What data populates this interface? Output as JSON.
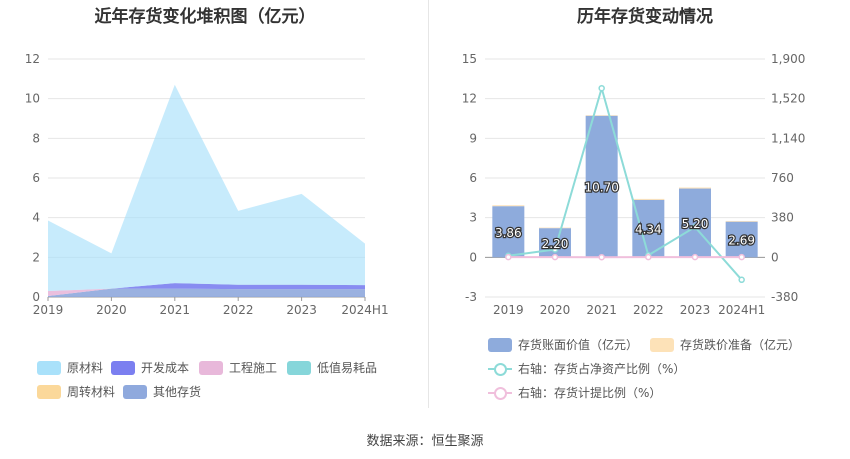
{
  "left_chart": {
    "title": "近年存货变化堆积图（亿元）",
    "legend": [
      {
        "name": "原材料",
        "color": "#a9e1fa"
      },
      {
        "name": "开发成本",
        "color": "#7b7ff0"
      },
      {
        "name": "工程施工",
        "color": "#e8b8da"
      },
      {
        "name": "低值易耗品",
        "color": "#86d6da"
      },
      {
        "name": "周转材料",
        "color": "#fbd89a"
      },
      {
        "name": "其他存货",
        "color": "#8fa9dd"
      }
    ]
  },
  "right_chart": {
    "title": "历年存货变动情况",
    "legend": [
      {
        "name": "存货账面价值（亿元）",
        "color": "#8eabdc",
        "kind": "bar"
      },
      {
        "name": "存货跌价准备（亿元）",
        "color": "#fde2b8",
        "kind": "bar"
      },
      {
        "name": "右轴：存货占净资产比例（%）",
        "color": "#8ddbd8",
        "kind": "line"
      },
      {
        "name": "右轴：存货计提比例（%）",
        "color": "#f0bfdc",
        "kind": "line"
      }
    ]
  },
  "chart_data": [
    {
      "type": "area",
      "stacked": true,
      "title": "近年存货变化堆积图（亿元）",
      "categories": [
        "2019",
        "2020",
        "2021",
        "2022",
        "2023",
        "2024H1"
      ],
      "ylim": [
        0,
        12
      ],
      "yticks": [
        0,
        2,
        4,
        6,
        8,
        10,
        12
      ],
      "grid": true,
      "legend_position": "bottom",
      "series": [
        {
          "name": "其他存货",
          "color": "#8fa9dd",
          "values": [
            0.05,
            0.42,
            0.42,
            0.4,
            0.4,
            0.4
          ]
        },
        {
          "name": "周转材料",
          "color": "#fbd89a",
          "values": [
            0,
            0,
            0,
            0,
            0,
            0
          ]
        },
        {
          "name": "低值易耗品",
          "color": "#86d6da",
          "values": [
            0,
            0,
            0,
            0,
            0,
            0
          ]
        },
        {
          "name": "工程施工",
          "color": "#e8b8da",
          "values": [
            0.25,
            0,
            0,
            0,
            0,
            0
          ]
        },
        {
          "name": "开发成本",
          "color": "#7b7ff0",
          "values": [
            0,
            0,
            0.28,
            0.22,
            0.22,
            0.2
          ]
        },
        {
          "name": "原材料",
          "color": "#a9e1fa",
          "values": [
            3.56,
            1.78,
            10.0,
            3.72,
            4.58,
            2.09
          ]
        }
      ]
    },
    {
      "type": "bar",
      "title": "历年存货变动情况",
      "categories": [
        "2019",
        "2020",
        "2021",
        "2022",
        "2023",
        "2024H1"
      ],
      "ylim": [
        -3,
        15
      ],
      "yticks": [
        -3,
        0,
        3,
        6,
        9,
        12,
        15
      ],
      "y2lim": [
        -380,
        1900
      ],
      "y2ticks": [
        -380,
        0,
        380,
        760,
        1140,
        1520,
        1900
      ],
      "y2tick_labels": [
        "-380",
        "0",
        "380",
        "760",
        "1,140",
        "1,520",
        "1,900"
      ],
      "grid": true,
      "legend_position": "bottom",
      "series": [
        {
          "name": "存货账面价值（亿元）",
          "type": "bar",
          "axis": "left",
          "color": "#8eabdc",
          "values": [
            3.86,
            2.2,
            10.7,
            4.34,
            5.2,
            2.69
          ],
          "labels": [
            "3.86",
            "2.20",
            "10.70",
            "4.34",
            "5.20",
            "2.69"
          ]
        },
        {
          "name": "存货跌价准备（亿元）",
          "type": "bar",
          "axis": "left",
          "color": "#fde2b8",
          "values": [
            0.08,
            0.05,
            0.05,
            0.08,
            0.08,
            0.06
          ]
        },
        {
          "name": "右轴：存货占净资产比例（%）",
          "type": "line",
          "axis": "right",
          "color": "#8ddbd8",
          "values": [
            15,
            75,
            1620,
            20,
            290,
            -215
          ]
        },
        {
          "name": "右轴：存货计提比例（%）",
          "type": "line",
          "axis": "right",
          "color": "#f0bfdc",
          "values": [
            2,
            2,
            1,
            2,
            2,
            2
          ]
        }
      ]
    }
  ],
  "source": "数据来源：恒生聚源"
}
